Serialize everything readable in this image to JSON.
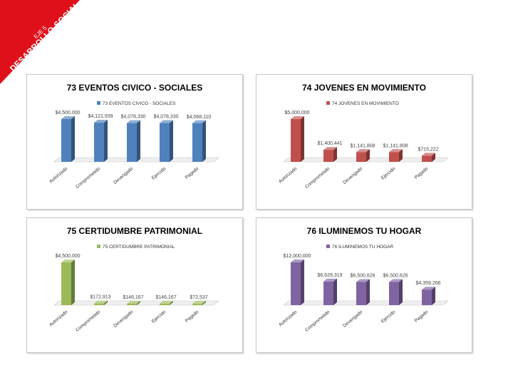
{
  "corner": {
    "line1": "EJE 5",
    "line2": "DESARROLLO SOCIAL",
    "color": "#e0101a"
  },
  "chart_data": [
    {
      "type": "bar",
      "title": "73 EVENTOS CIVICO - SOCIALES",
      "categories": [
        "Autorizado",
        "Comprometido",
        "Devengado",
        "Ejercido",
        "Pagado"
      ],
      "series": [
        {
          "name": "73 EVENTOS CIVICO - SOCIALES",
          "values": [
            4500000,
            4121939,
            4078330,
            4078330,
            4068110
          ]
        }
      ],
      "data_labels": [
        "$4,500,000",
        "$4,121,939",
        "$4,078,330",
        "$4,078,330",
        "$4,068,110"
      ],
      "color": "#4f81bd",
      "legend": "top"
    },
    {
      "type": "bar",
      "title": "74 JOVENES EN MOVIMIENTO",
      "categories": [
        "Autorizado",
        "Comprometido",
        "Devengado",
        "Ejercido",
        "Pagado"
      ],
      "series": [
        {
          "name": "74 JOVENES EN MOVIMIENTO",
          "values": [
            5000000,
            1400441,
            1141808,
            1141808,
            715222
          ]
        }
      ],
      "data_labels": [
        "$5,000,000",
        "$1,400,441",
        "$1,141,808",
        "$1,141,808",
        "$715,222"
      ],
      "color": "#c0504d",
      "legend": "top"
    },
    {
      "type": "bar",
      "title": "75 CERTIDUMBRE PATRIMONIAL",
      "categories": [
        "Autorizado",
        "Comprometido",
        "Devengado",
        "Ejercido",
        "Pagado"
      ],
      "series": [
        {
          "name": "75 CERTIDUMBRE PATRIMONIAL",
          "values": [
            4500000,
            172913,
            146167,
            146167,
            72537
          ]
        }
      ],
      "data_labels": [
        "$4,500,000",
        "$172,913",
        "$146,167",
        "$146,167",
        "$72,537"
      ],
      "color": "#9bbb59",
      "legend": "top"
    },
    {
      "type": "bar",
      "title": "76 ILUMINEMOS TU HOGAR",
      "categories": [
        "Autorizado",
        "Comprometido",
        "Devengado",
        "Ejercido",
        "Pagado"
      ],
      "series": [
        {
          "name": "76 ILUMINEMOS TU HOGAR",
          "values": [
            12000000,
            6629319,
            6500626,
            6500626,
            4359266
          ]
        }
      ],
      "data_labels": [
        "$12,000,000",
        "$6,629,319",
        "$6,500,626",
        "$6,500,626",
        "$4,359,266"
      ],
      "color": "#8064a2",
      "legend": "top"
    }
  ]
}
